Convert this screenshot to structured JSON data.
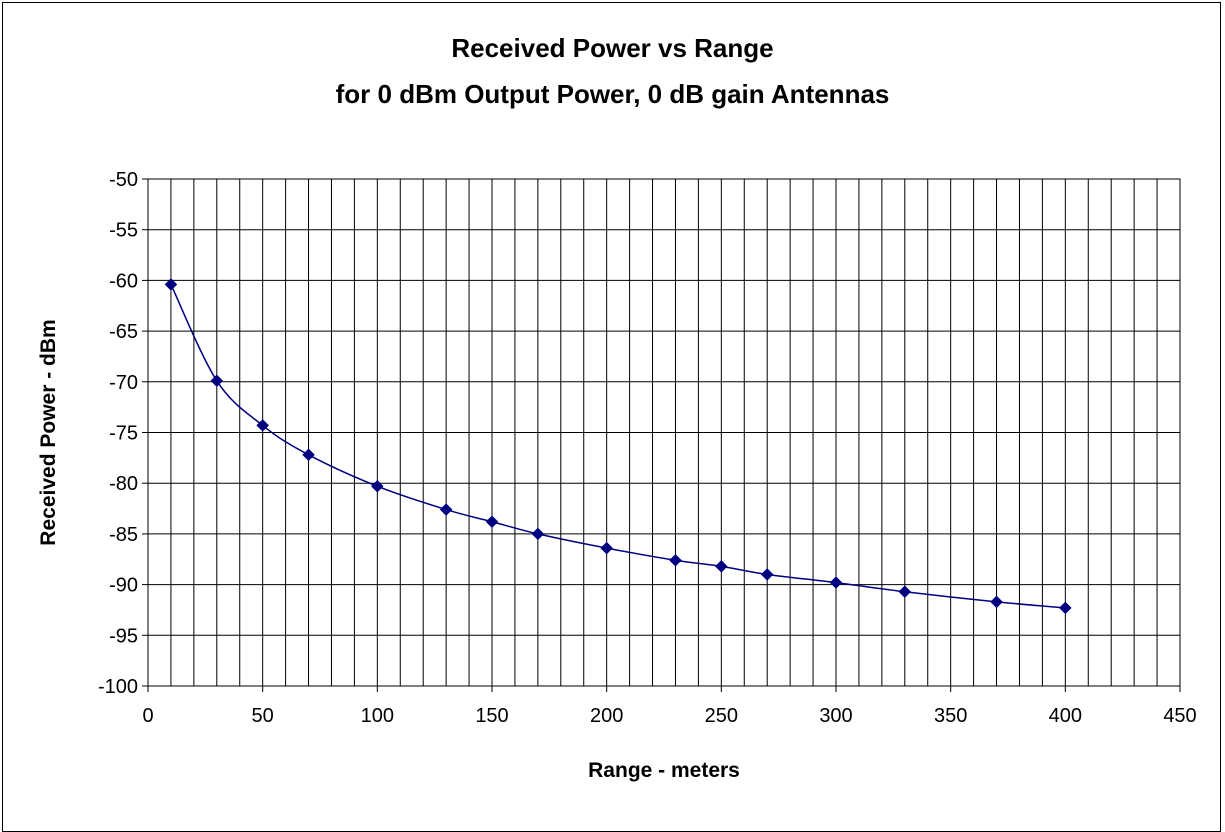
{
  "chart_data": {
    "type": "line",
    "title": "Received Power vs Range",
    "subtitle": "for 0 dBm Output Power, 0 dB gain Antennas",
    "xlabel": "Range - meters",
    "ylabel": "Received Power - dBm",
    "xlim": [
      0,
      450
    ],
    "ylim": [
      -100,
      -50
    ],
    "x_ticks": [
      0,
      50,
      100,
      150,
      200,
      250,
      300,
      350,
      400,
      450
    ],
    "y_ticks": [
      -50,
      -55,
      -60,
      -65,
      -70,
      -75,
      -80,
      -85,
      -90,
      -95,
      -100
    ],
    "x_minor_grid_step": 10,
    "grid": true,
    "legend": "none",
    "series": [
      {
        "color": "#000080",
        "marker": "diamond",
        "x": [
          10,
          30,
          50,
          70,
          100,
          130,
          150,
          170,
          200,
          230,
          250,
          270,
          300,
          330,
          370,
          400
        ],
        "y": [
          -60.4,
          -69.9,
          -74.3,
          -77.2,
          -80.3,
          -82.6,
          -83.8,
          -85.0,
          -86.4,
          -87.6,
          -88.2,
          -89.0,
          -89.8,
          -90.7,
          -91.7,
          -92.3
        ]
      }
    ]
  }
}
